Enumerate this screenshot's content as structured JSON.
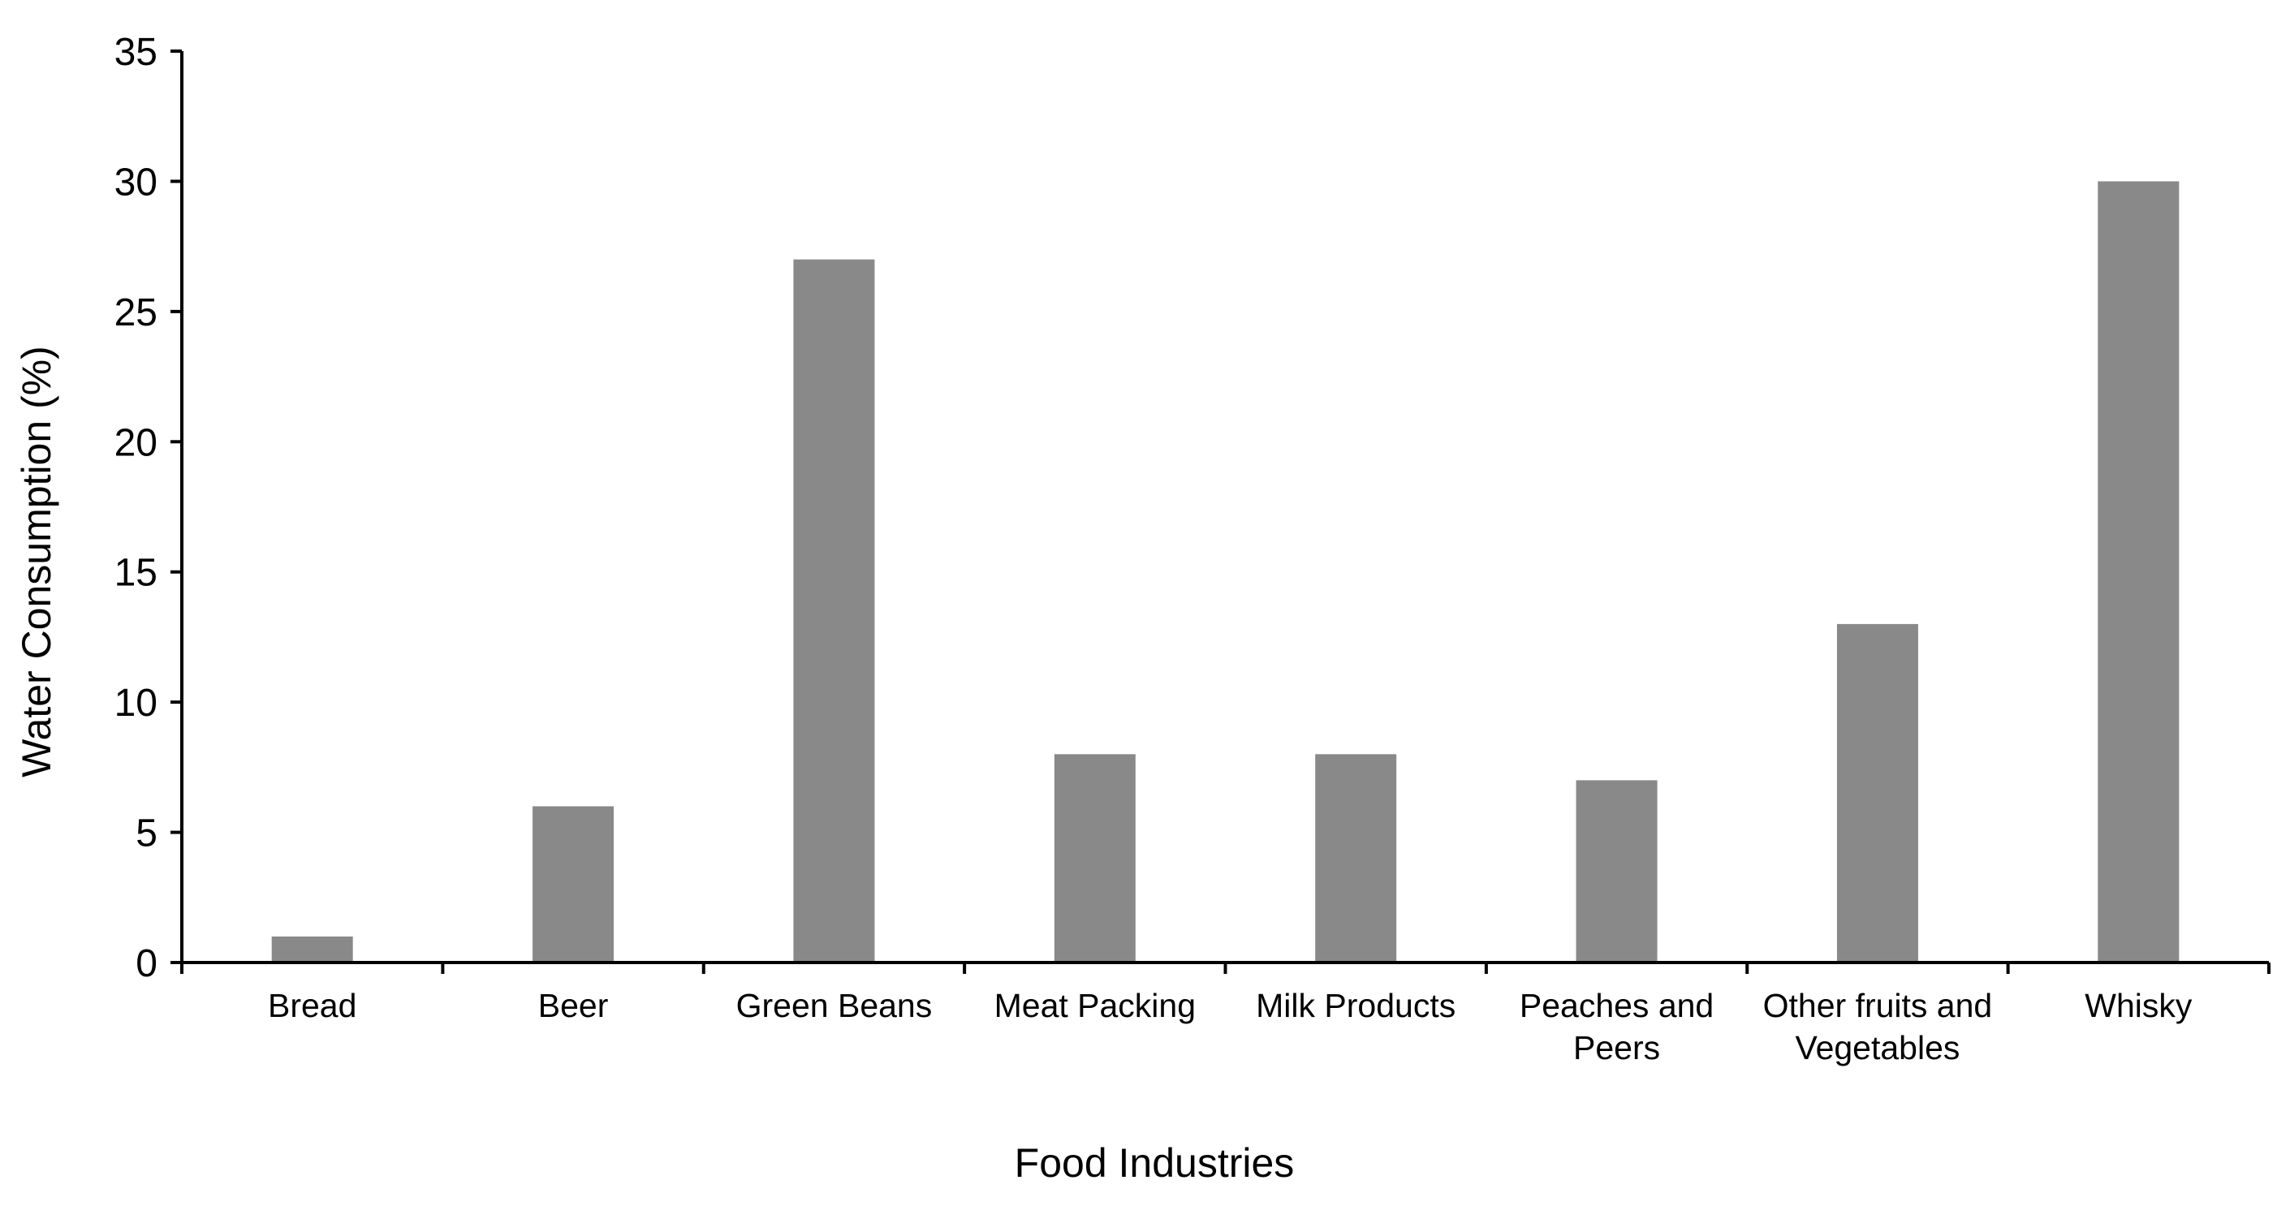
{
  "chart_data": {
    "type": "bar",
    "title": "",
    "xlabel": "Food Industries",
    "ylabel": "Water Consumption (%)",
    "ylim": [
      0,
      35
    ],
    "yticks": [
      0,
      5,
      10,
      15,
      20,
      25,
      30,
      35
    ],
    "grid": false,
    "legend": "none",
    "bar_color": "#898989",
    "axis_color": "#000000",
    "categories": [
      [
        "Bread"
      ],
      [
        "Beer"
      ],
      [
        "Green Beans"
      ],
      [
        "Meat Packing"
      ],
      [
        "Milk Products"
      ],
      [
        "Peaches and",
        "Peers"
      ],
      [
        "Other fruits and",
        "Vegetables"
      ],
      [
        "Whisky"
      ]
    ],
    "values": [
      1,
      6,
      27,
      8,
      8,
      7,
      13,
      30
    ]
  }
}
